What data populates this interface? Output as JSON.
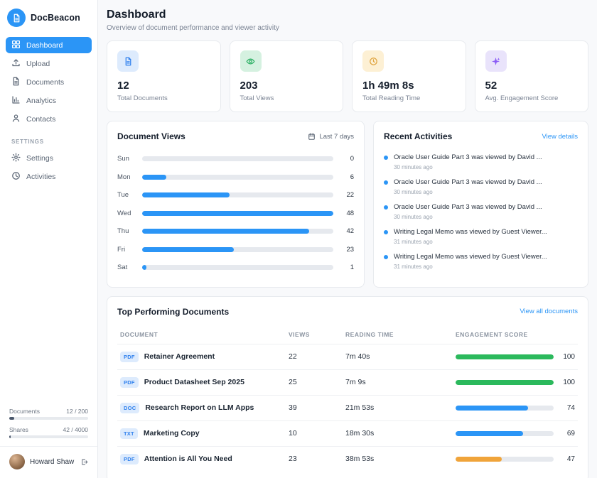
{
  "app": {
    "name": "DocBeacon"
  },
  "sidebar": {
    "nav": [
      {
        "label": "Dashboard"
      },
      {
        "label": "Upload"
      },
      {
        "label": "Documents"
      },
      {
        "label": "Analytics"
      },
      {
        "label": "Contacts"
      }
    ],
    "settings_heading": "SETTINGS",
    "settings_nav": [
      {
        "label": "Settings"
      },
      {
        "label": "Activities"
      }
    ],
    "usage": [
      {
        "label": "Documents",
        "value": "12 / 200",
        "pct": 6
      },
      {
        "label": "Shares",
        "value": "42 / 4000",
        "pct": 1.1
      }
    ],
    "user": {
      "name": "Howard Shaw"
    }
  },
  "header": {
    "title": "Dashboard",
    "subtitle": "Overview of document performance and viewer activity"
  },
  "stats": [
    {
      "value": "12",
      "label": "Total Documents",
      "icon": "document-icon",
      "icon_bg": "#ddebfd",
      "icon_color": "#2f80ed"
    },
    {
      "value": "203",
      "label": "Total Views",
      "icon": "eye-icon",
      "icon_bg": "#d5f1e0",
      "icon_color": "#27ae60"
    },
    {
      "value": "1h 49m 8s",
      "label": "Total Reading Time",
      "icon": "clock-icon",
      "icon_bg": "#fdf0d4",
      "icon_color": "#dfa23c"
    },
    {
      "value": "52",
      "label": "Avg. Engagement Score",
      "icon": "sparkles-icon",
      "icon_bg": "#e9e3fb",
      "icon_color": "#8b5cf6"
    }
  ],
  "chart_data": {
    "type": "bar",
    "orientation": "horizontal",
    "title": "Document Views",
    "range_label": "Last 7 days",
    "categories": [
      "Sun",
      "Mon",
      "Tue",
      "Wed",
      "Thu",
      "Fri",
      "Sat"
    ],
    "values": [
      0,
      6,
      22,
      48,
      42,
      23,
      1
    ],
    "xlim": [
      0,
      48
    ],
    "bar_color": "#2b95f6",
    "track_color": "#e6e9ee",
    "grid": false,
    "legend": false
  },
  "recent_activities": {
    "title": "Recent Activities",
    "link_label": "View details",
    "items": [
      {
        "text": "Oracle User Guide Part 3 was viewed by David ...",
        "time": "30 minutes ago"
      },
      {
        "text": "Oracle User Guide Part 3 was viewed by David ...",
        "time": "30 minutes ago"
      },
      {
        "text": "Oracle User Guide Part 3 was viewed by David ...",
        "time": "30 minutes ago"
      },
      {
        "text": "Writing Legal Memo was viewed by Guest Viewer...",
        "time": "31 minutes ago"
      },
      {
        "text": "Writing Legal Memo was viewed by Guest Viewer...",
        "time": "31 minutes ago"
      }
    ]
  },
  "top_documents": {
    "title": "Top Performing Documents",
    "link_label": "View all documents",
    "headers": [
      "DOCUMENT",
      "VIEWS",
      "READING TIME",
      "ENGAGEMENT SCORE"
    ],
    "rows": [
      {
        "type": "PDF",
        "name": "Retainer Agreement",
        "views": "22",
        "reading_time": "7m 40s",
        "score": 100,
        "score_color": "#2bb95c"
      },
      {
        "type": "PDF",
        "name": "Product Datasheet Sep 2025",
        "views": "25",
        "reading_time": "7m 9s",
        "score": 100,
        "score_color": "#2bb95c"
      },
      {
        "type": "DOC",
        "name": "Research Report on LLM Apps",
        "views": "39",
        "reading_time": "21m 53s",
        "score": 74,
        "score_color": "#2b95f6"
      },
      {
        "type": "TXT",
        "name": "Marketing Copy",
        "views": "10",
        "reading_time": "18m 30s",
        "score": 69,
        "score_color": "#2b95f6"
      },
      {
        "type": "PDF",
        "name": "Attention is All You Need",
        "views": "23",
        "reading_time": "38m 53s",
        "score": 47,
        "score_color": "#f0a43a"
      }
    ]
  }
}
